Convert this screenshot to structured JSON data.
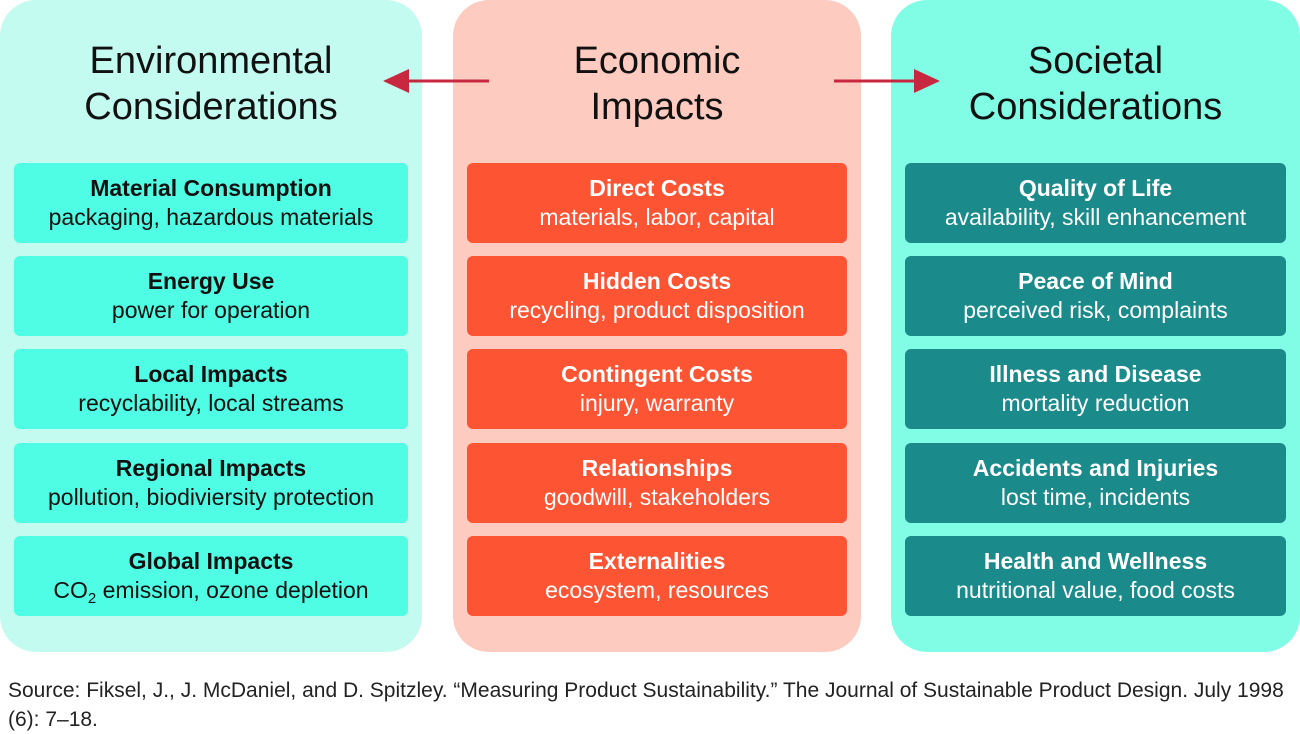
{
  "columns": {
    "environmental": {
      "title_line1": "Environmental",
      "title_line2": "Considerations",
      "color": "#c4fbf1",
      "cards": [
        {
          "title": "Material Consumption",
          "desc": "packaging, hazardous materials"
        },
        {
          "title": "Energy Use",
          "desc": "power for operation"
        },
        {
          "title": "Local Impacts",
          "desc": "recyclability, local streams"
        },
        {
          "title": "Regional Impacts",
          "desc": "pollution, biodiviersity protection"
        },
        {
          "title": "Global Impacts",
          "desc_prefix": "CO",
          "desc_sub": "2",
          "desc_suffix": " emission, ozone depletion"
        }
      ]
    },
    "economic": {
      "title_line1": "Economic",
      "title_line2": "Impacts",
      "color": "#fdcbc0",
      "cards": [
        {
          "title": "Direct Costs",
          "desc": "materials, labor, capital"
        },
        {
          "title": "Hidden Costs",
          "desc": "recycling, product disposition"
        },
        {
          "title": "Contingent Costs",
          "desc": "injury, warranty"
        },
        {
          "title": "Relationships",
          "desc": "goodwill, stakeholders"
        },
        {
          "title": "Externalities",
          "desc": "ecosystem, resources"
        }
      ]
    },
    "societal": {
      "title_line1": "Societal",
      "title_line2": "Considerations",
      "color": "#82fde5",
      "cards": [
        {
          "title": "Quality of Life",
          "desc": "availability, skill enhancement"
        },
        {
          "title": "Peace of Mind",
          "desc": "perceived risk, complaints"
        },
        {
          "title": "Illness and Disease",
          "desc": "mortality reduction"
        },
        {
          "title": "Accidents and Injuries",
          "desc": "lost time, incidents"
        },
        {
          "title": "Health and Wellness",
          "desc": "nutritional value, food costs"
        }
      ]
    }
  },
  "arrows": {
    "color": "#c8283f",
    "left_icon": "arrow-left-icon",
    "right_icon": "arrow-right-icon"
  },
  "source": {
    "text": "Source: Fiksel, J., J. McDaniel, and D. Spitzley. “Measuring Product Sustainability.” The Journal of Sustainable Product Design. July 1998 (6): 7–18."
  }
}
